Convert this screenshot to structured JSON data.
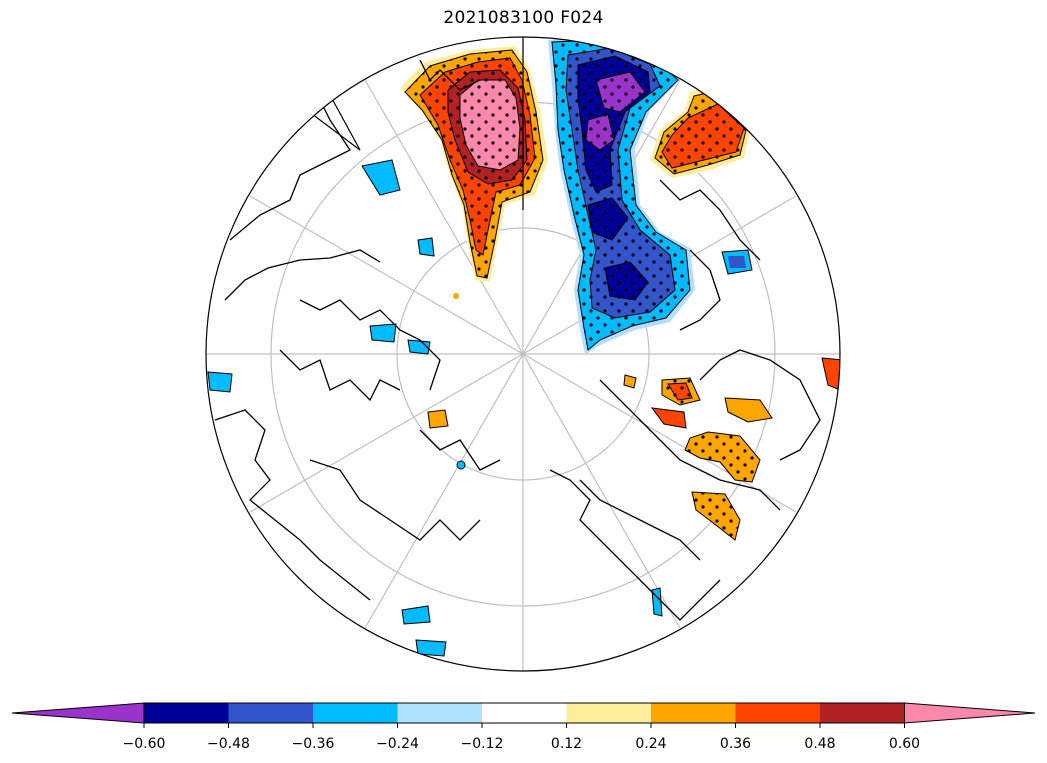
{
  "title": "2021083100 F024",
  "colors": {
    "c_lt_neg060": "#9933CC",
    "c_neg060_neg048": "#000099",
    "c_neg048_neg036": "#3355CC",
    "c_neg036_neg024": "#00BBFF",
    "c_neg024_neg012": "#B0E0FF",
    "c_neg012_012": "#FFFFFF",
    "c_012_024": "#FFEE99",
    "c_024_036": "#FFA500",
    "c_036_048": "#FF4400",
    "c_048_060": "#B22222",
    "c_gt_060": "#FF88AA"
  },
  "colorbar": {
    "ticks": [
      "−0.60",
      "−0.48",
      "−0.36",
      "−0.24",
      "−0.12",
      "0.12",
      "0.24",
      "0.36",
      "0.48",
      "0.60"
    ],
    "extend": "both"
  },
  "map": {
    "projection": "north polar stereographic",
    "hatching": "dots",
    "grid": true
  }
}
